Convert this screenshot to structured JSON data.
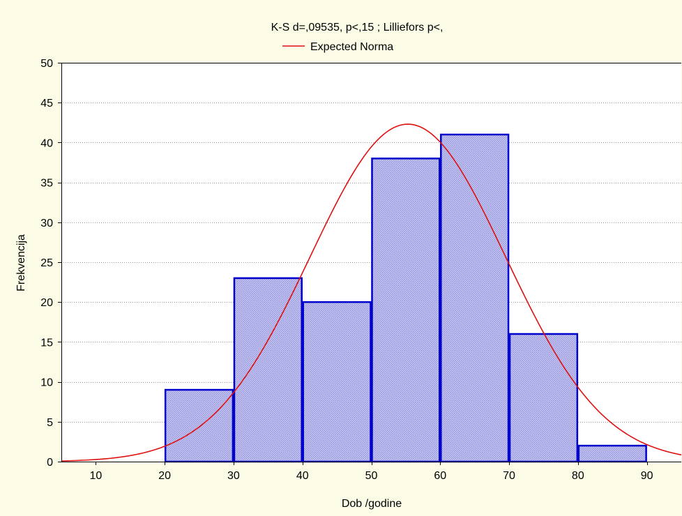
{
  "chart_data": {
    "type": "bar",
    "title": "K-S d=,09535, p<,15 ; Lilliefors p<,",
    "xlabel": "Dob /godine",
    "ylabel": "Frekvencija",
    "xlim": [
      5,
      95
    ],
    "ylim": [
      0,
      50
    ],
    "x_ticks": [
      10,
      20,
      30,
      40,
      50,
      60,
      70,
      80,
      90
    ],
    "y_ticks": [
      0,
      5,
      10,
      15,
      20,
      25,
      30,
      35,
      40,
      45,
      50
    ],
    "bins": [
      {
        "start": 20,
        "end": 30,
        "value": 9
      },
      {
        "start": 30,
        "end": 40,
        "value": 23
      },
      {
        "start": 40,
        "end": 50,
        "value": 20
      },
      {
        "start": 50,
        "end": 60,
        "value": 38
      },
      {
        "start": 60,
        "end": 70,
        "value": 41
      },
      {
        "start": 70,
        "end": 80,
        "value": 16
      },
      {
        "start": 80,
        "end": 90,
        "value": 2
      }
    ],
    "series": [
      {
        "name": "Expected Norma",
        "type": "line",
        "mean": 55.3,
        "sd": 14.2,
        "peak": 42.3,
        "color": "#e01010"
      }
    ],
    "bar_fill": "#c8c8f0",
    "bar_stroke": "#0000cc",
    "grid": true,
    "legend_position": "top-center"
  }
}
